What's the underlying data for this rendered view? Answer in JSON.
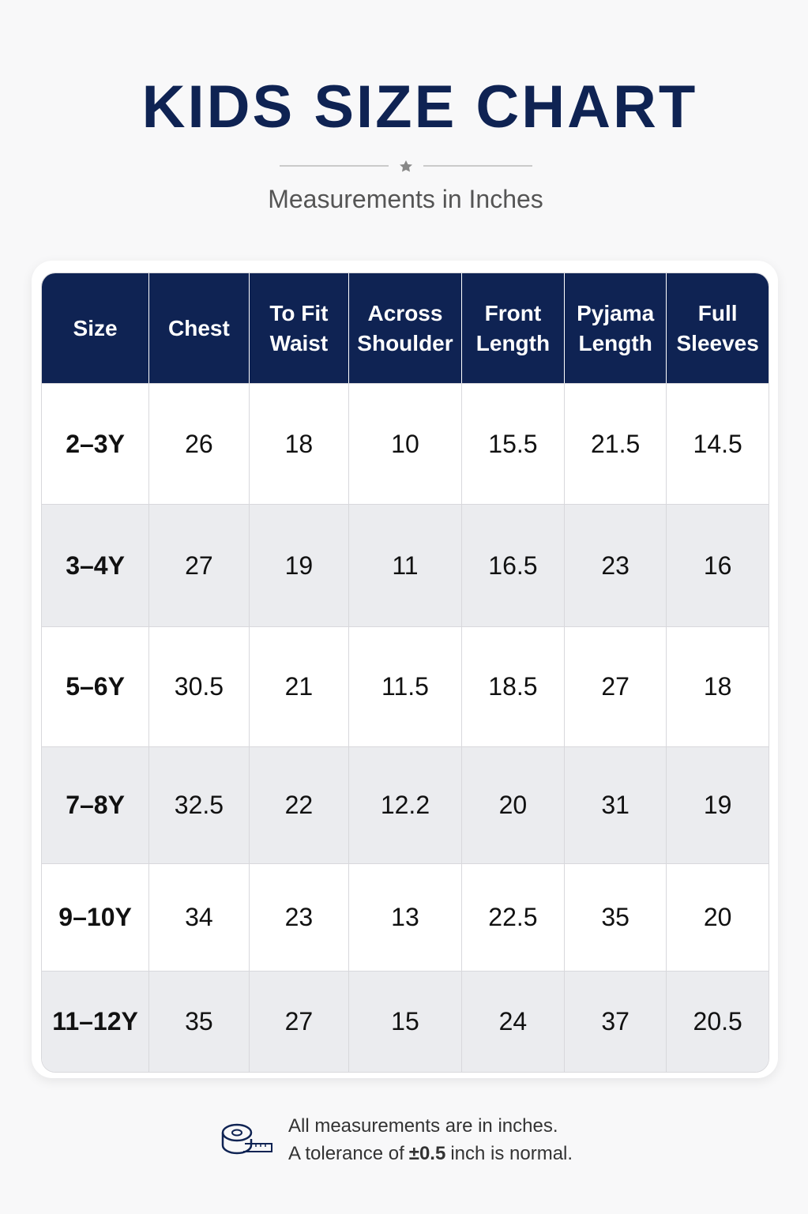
{
  "header": {
    "title": "KIDS SIZE CHART",
    "subtitle": "Measurements in Inches"
  },
  "table": {
    "columns": [
      "Size",
      "Chest",
      "To Fit Waist",
      "Across Shoulder",
      "Front Length",
      "Pyjama Length",
      "Full Sleeves"
    ],
    "rows": [
      [
        "2–3Y",
        26,
        18,
        10,
        15.5,
        21.5,
        14.5
      ],
      [
        "3–4Y",
        27,
        19,
        11,
        16.5,
        23,
        16
      ],
      [
        "5–6Y",
        30.5,
        21,
        11.5,
        18.5,
        27,
        18
      ],
      [
        "7–8Y",
        32.5,
        22,
        12.2,
        20,
        31,
        19
      ],
      [
        "9–10Y",
        34,
        23,
        13,
        22.5,
        35,
        20
      ],
      [
        "11–12Y",
        35,
        27,
        15,
        24,
        37,
        20.5
      ]
    ]
  },
  "note": {
    "line1": "All measurements are in inches.",
    "line2": [
      "A tolerance of",
      "±0.5",
      "inch is normal."
    ]
  }
}
